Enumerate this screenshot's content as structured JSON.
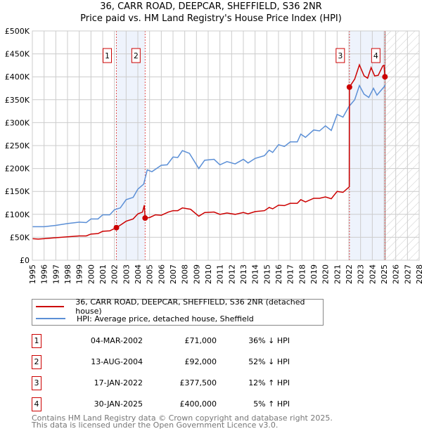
{
  "chart_data": {
    "type": "line",
    "title": "36, CARR ROAD, DEEPCAR, SHEFFIELD, S36 2NR",
    "subtitle": "Price paid vs. HM Land Registry's House Price Index (HPI)",
    "xlim": [
      1995,
      2028
    ],
    "ylim": [
      0,
      500000
    ],
    "x_ticks": [
      "1995",
      "1996",
      "1997",
      "1998",
      "1999",
      "2000",
      "2001",
      "2002",
      "2003",
      "2004",
      "2005",
      "2006",
      "2007",
      "2008",
      "2009",
      "2010",
      "2011",
      "2012",
      "2013",
      "2014",
      "2015",
      "2016",
      "2017",
      "2018",
      "2019",
      "2020",
      "2021",
      "2022",
      "2023",
      "2024",
      "2025",
      "2026",
      "2027",
      "2028"
    ],
    "y_ticks": [
      {
        "v": 0,
        "label": "£0"
      },
      {
        "v": 50000,
        "label": "£50K"
      },
      {
        "v": 100000,
        "label": "£100K"
      },
      {
        "v": 150000,
        "label": "£150K"
      },
      {
        "v": 200000,
        "label": "£200K"
      },
      {
        "v": 250000,
        "label": "£250K"
      },
      {
        "v": 300000,
        "label": "£300K"
      },
      {
        "v": 350000,
        "label": "£350K"
      },
      {
        "v": 400000,
        "label": "£400K"
      },
      {
        "v": 450000,
        "label": "£450K"
      },
      {
        "v": 500000,
        "label": "£500K"
      }
    ],
    "grid": true,
    "shaded_ranges": [
      [
        2002.17,
        2004.62
      ],
      [
        2022.04,
        2025.08
      ]
    ],
    "forecast_hatch_from": 2025.1,
    "series": [
      {
        "name": "36, CARR ROAD, DEEPCAR, SHEFFIELD, S36 2NR (detached house)",
        "color": "#cc0000",
        "points": [
          [
            1995,
            47
          ],
          [
            1995.5,
            46
          ],
          [
            1996,
            47
          ],
          [
            1997,
            49
          ],
          [
            1998,
            51
          ],
          [
            1999,
            53
          ],
          [
            1999.6,
            53
          ],
          [
            2000,
            57
          ],
          [
            2000.6,
            58
          ],
          [
            2001,
            63
          ],
          [
            2001.6,
            64
          ],
          [
            2002.17,
            71
          ],
          [
            2002.6,
            78
          ],
          [
            2003,
            85
          ],
          [
            2003.6,
            90
          ],
          [
            2004,
            101
          ],
          [
            2004.4,
            105
          ],
          [
            2004.55,
            120
          ],
          [
            2004.62,
            92
          ],
          [
            2005,
            93
          ],
          [
            2005.5,
            99
          ],
          [
            2006,
            98
          ],
          [
            2006.6,
            105
          ],
          [
            2007,
            108
          ],
          [
            2007.4,
            108
          ],
          [
            2007.8,
            114
          ],
          [
            2008.5,
            111
          ],
          [
            2009.2,
            96
          ],
          [
            2009.7,
            104
          ],
          [
            2010.5,
            105
          ],
          [
            2011,
            100
          ],
          [
            2011.6,
            103
          ],
          [
            2012.3,
            100
          ],
          [
            2013,
            104
          ],
          [
            2013.4,
            101
          ],
          [
            2014,
            106
          ],
          [
            2014.8,
            108
          ],
          [
            2015.2,
            115
          ],
          [
            2015.5,
            112
          ],
          [
            2016,
            120
          ],
          [
            2016.5,
            119
          ],
          [
            2017,
            124
          ],
          [
            2017.6,
            124
          ],
          [
            2017.9,
            132
          ],
          [
            2018.3,
            127
          ],
          [
            2019,
            135
          ],
          [
            2019.5,
            135
          ],
          [
            2020,
            138
          ],
          [
            2020.5,
            134
          ],
          [
            2021,
            150
          ],
          [
            2021.5,
            148
          ],
          [
            2022.04,
            160
          ],
          [
            2022.05,
            377.5
          ],
          [
            2022.5,
            395
          ],
          [
            2022.9,
            426
          ],
          [
            2023.3,
            402
          ],
          [
            2023.6,
            397
          ],
          [
            2023.9,
            420
          ],
          [
            2024.2,
            402
          ],
          [
            2024.5,
            403
          ],
          [
            2024.9,
            424
          ],
          [
            2025.0,
            425
          ],
          [
            2025.08,
            400
          ],
          [
            2025.2,
            400
          ]
        ]
      },
      {
        "name": "HPI: Average price, detached house, Sheffield",
        "color": "#5b8fd6",
        "points": [
          [
            1995,
            73
          ],
          [
            1996,
            73
          ],
          [
            1997,
            76
          ],
          [
            1998,
            80
          ],
          [
            1998.7,
            82
          ],
          [
            1999,
            83
          ],
          [
            1999.6,
            82
          ],
          [
            2000,
            90
          ],
          [
            2000.6,
            90
          ],
          [
            2001,
            99
          ],
          [
            2001.6,
            99
          ],
          [
            2002,
            110
          ],
          [
            2002.5,
            114
          ],
          [
            2003,
            132
          ],
          [
            2003.6,
            137
          ],
          [
            2004,
            155
          ],
          [
            2004.5,
            166
          ],
          [
            2004.8,
            197
          ],
          [
            2005.2,
            193
          ],
          [
            2006,
            207
          ],
          [
            2006.5,
            208
          ],
          [
            2007,
            225
          ],
          [
            2007.4,
            224
          ],
          [
            2007.8,
            239
          ],
          [
            2008.4,
            233
          ],
          [
            2009.2,
            200
          ],
          [
            2009.7,
            218
          ],
          [
            2010.5,
            220
          ],
          [
            2011,
            208
          ],
          [
            2011.6,
            215
          ],
          [
            2012.3,
            210
          ],
          [
            2013,
            220
          ],
          [
            2013.4,
            212
          ],
          [
            2014,
            222
          ],
          [
            2014.8,
            228
          ],
          [
            2015.2,
            240
          ],
          [
            2015.5,
            235
          ],
          [
            2016,
            252
          ],
          [
            2016.5,
            248
          ],
          [
            2017,
            258
          ],
          [
            2017.6,
            258
          ],
          [
            2017.9,
            275
          ],
          [
            2018.3,
            268
          ],
          [
            2019,
            284
          ],
          [
            2019.5,
            282
          ],
          [
            2020,
            293
          ],
          [
            2020.5,
            283
          ],
          [
            2021,
            318
          ],
          [
            2021.5,
            312
          ],
          [
            2022,
            335
          ],
          [
            2022.5,
            350
          ],
          [
            2022.9,
            381
          ],
          [
            2023.3,
            362
          ],
          [
            2023.7,
            355
          ],
          [
            2024.1,
            375
          ],
          [
            2024.4,
            360
          ],
          [
            2025,
            378
          ],
          [
            2025.1,
            382
          ]
        ]
      }
    ],
    "sales": [
      {
        "id": "1",
        "x": 2002.17,
        "price": 71000,
        "date": "04-MAR-2002",
        "price_label": "£71,000",
        "hpi": "36% ↓ HPI"
      },
      {
        "id": "2",
        "x": 2004.62,
        "price": 92000,
        "date": "13-AUG-2004",
        "price_label": "£92,000",
        "hpi": "52% ↓ HPI"
      },
      {
        "id": "3",
        "x": 2022.05,
        "price": 377500,
        "date": "17-JAN-2022",
        "price_label": "£377,500",
        "hpi": "12% ↑ HPI"
      },
      {
        "id": "4",
        "x": 2025.08,
        "price": 400000,
        "date": "30-JAN-2025",
        "price_label": "£400,000",
        "hpi": "5% ↑ HPI"
      }
    ]
  },
  "footer": {
    "line1": "Contains HM Land Registry data © Crown copyright and database right 2025.",
    "line2": "This data is licensed under the Open Government Licence v3.0."
  }
}
